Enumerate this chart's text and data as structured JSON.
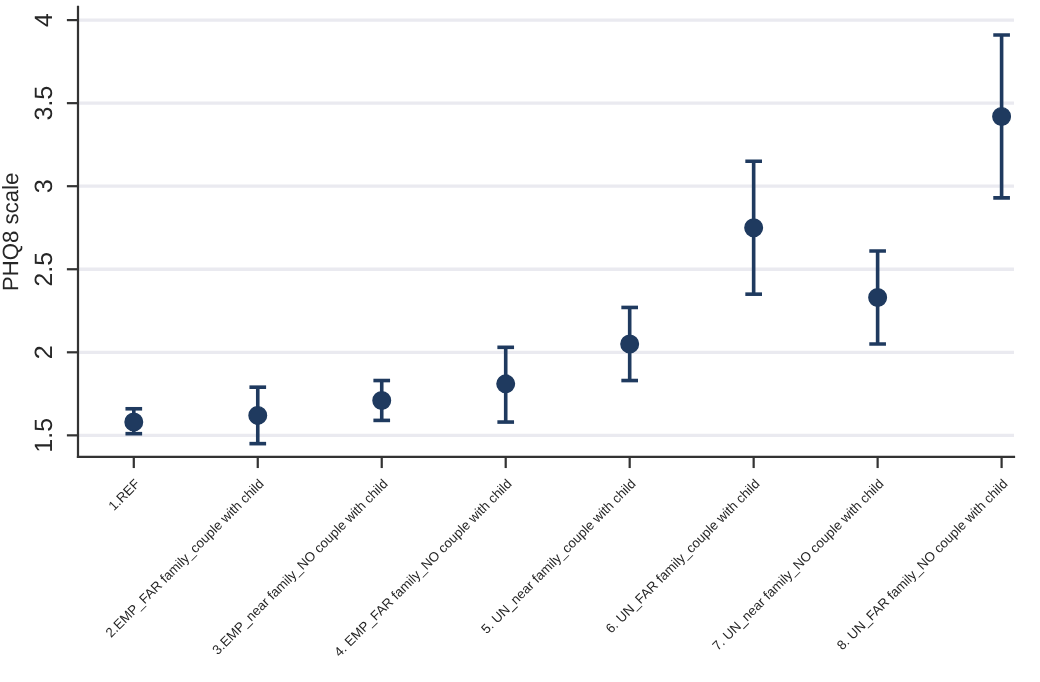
{
  "chart_data": {
    "type": "scatter",
    "ylabel": "PHQ8 scale",
    "categories": [
      "1.REF",
      "2.EMP_FAR family_couple with child",
      "3.EMP_near family_NO couple with child",
      "4. EMP_FAR family_NO couple with child",
      "5. UN_near family_couple with child",
      "6. UN_FAR family_couple with child",
      "7. UN_near family_NO couple with child",
      "8. UN_FAR family_NO couple with child"
    ],
    "series": [
      {
        "color": "#1f3a5f",
        "values": [
          1.58,
          1.62,
          1.71,
          1.81,
          2.05,
          2.75,
          2.33,
          3.42
        ],
        "errors": [
          [
            1.51,
            1.66
          ],
          [
            1.45,
            1.79
          ],
          [
            1.59,
            1.83
          ],
          [
            1.58,
            2.03
          ],
          [
            1.83,
            2.27
          ],
          [
            2.35,
            3.15
          ],
          [
            2.05,
            2.61
          ],
          [
            2.93,
            3.91
          ]
        ]
      }
    ],
    "ylim": [
      1.37,
      4.08
    ],
    "yticks": [
      {
        "value": 1.5,
        "label": "1.5"
      },
      2,
      {
        "value": 2.5,
        "label": "2.5"
      },
      3,
      {
        "value": 3.5,
        "label": "3.5"
      },
      4
    ],
    "grid": "y",
    "marker": "circle"
  }
}
